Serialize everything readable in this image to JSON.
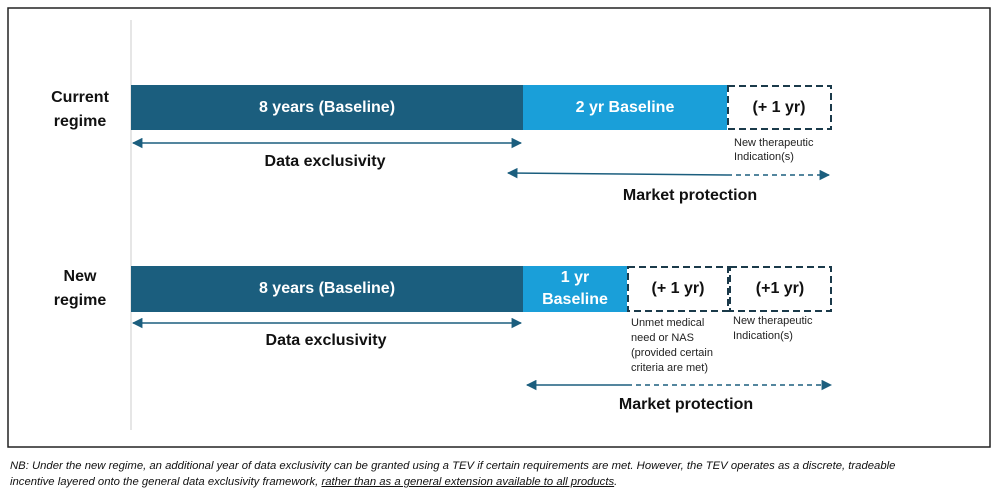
{
  "current": {
    "label": [
      "Current",
      "regime"
    ],
    "bar1": "8 years (Baseline)",
    "bar2": "2 yr Baseline",
    "bar3": "(+ 1 yr)",
    "note3": [
      "New therapeutic",
      "Indication(s)"
    ],
    "data_exclusivity": "Data exclusivity",
    "market_protection": "Market protection"
  },
  "new": {
    "label": [
      "New",
      "regime"
    ],
    "bar1": "8 years (Baseline)",
    "bar2": [
      "1 yr",
      "Baseline"
    ],
    "bar3": "(+ 1 yr)",
    "bar4": "(+1 yr)",
    "note3": [
      "Unmet medical",
      "need or NAS",
      "(provided certain",
      "criteria are met)"
    ],
    "note4": [
      "New therapeutic",
      "Indication(s)"
    ],
    "data_exclusivity": "Data exclusivity",
    "market_protection": "Market protection"
  },
  "footnote": {
    "line1": "NB: Under the new regime, an additional year of data exclusivity can be granted using a TEV if certain requirements are met. However, the TEV operates as a discrete, tradeable",
    "line2": "incentive layered onto the general data exclusivity framework, ",
    "underlined": "rather than as a general extension available to all products",
    "end": "."
  }
}
